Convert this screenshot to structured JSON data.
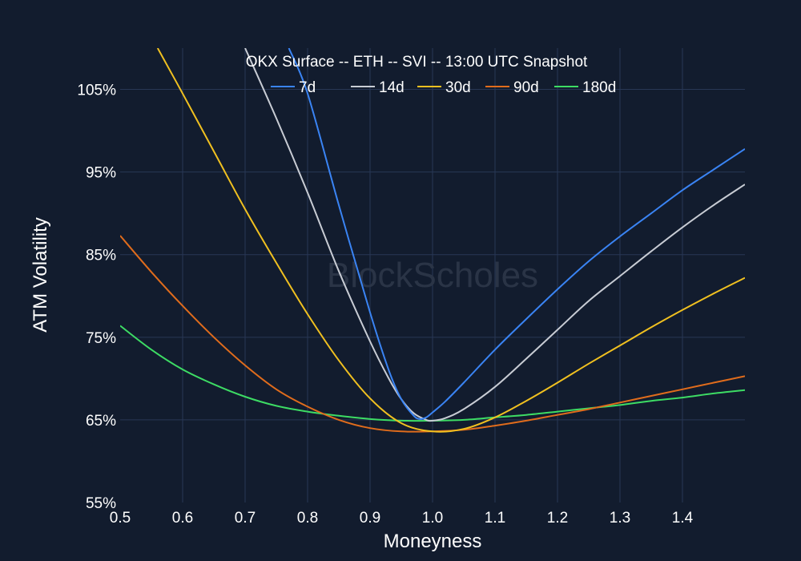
{
  "chart_data": {
    "type": "line",
    "title": "OKX Surface -- ETH -- SVI -- 13:00 UTC Snapshot",
    "xlabel": "Moneyness",
    "ylabel": "ATM Volatility",
    "watermark": "BlockScholes",
    "xlim": [
      0.5,
      1.5
    ],
    "ylim": [
      55,
      110
    ],
    "x_ticks": [
      0.5,
      0.6,
      0.7,
      0.8,
      0.9,
      1.0,
      1.1,
      1.2,
      1.3,
      1.4
    ],
    "x_tick_labels": [
      "0.5",
      "0.6",
      "0.7",
      "0.8",
      "0.9",
      "1.0",
      "1.1",
      "1.2",
      "1.3",
      "1.4"
    ],
    "y_ticks": [
      55,
      65,
      75,
      85,
      95,
      105
    ],
    "y_tick_labels": [
      "55%",
      "65%",
      "75%",
      "85%",
      "95%",
      "105%"
    ],
    "grid": true,
    "legend_position": "top-center",
    "colors": {
      "background": "#121c2e",
      "grid": "#283755"
    },
    "series": [
      {
        "name": "7d",
        "color": "#3a84f4",
        "x": [
          0.77,
          0.8,
          0.85,
          0.9,
          0.93,
          0.95,
          0.97,
          0.98,
          0.99,
          1.0,
          1.02,
          1.05,
          1.1,
          1.15,
          1.2,
          1.25,
          1.3,
          1.35,
          1.4,
          1.45,
          1.5
        ],
        "y": [
          110,
          104.5,
          91,
          78,
          71,
          67.5,
          65.5,
          65.1,
          65.3,
          65.9,
          67.2,
          69.5,
          73.5,
          77.2,
          80.8,
          84.2,
          87.2,
          90.0,
          92.8,
          95.3,
          97.8
        ]
      },
      {
        "name": "14d",
        "color": "#c8ccd4",
        "x": [
          0.7,
          0.75,
          0.8,
          0.85,
          0.9,
          0.93,
          0.95,
          0.97,
          0.99,
          1.0,
          1.02,
          1.05,
          1.1,
          1.15,
          1.2,
          1.25,
          1.3,
          1.35,
          1.4,
          1.45,
          1.5
        ],
        "y": [
          110,
          101.5,
          92.5,
          83,
          74.5,
          70,
          67.5,
          65.8,
          65.0,
          64.9,
          65.2,
          66.3,
          69.0,
          72.4,
          75.9,
          79.4,
          82.4,
          85.4,
          88.3,
          91.0,
          93.5
        ]
      },
      {
        "name": "30d",
        "color": "#f0c020",
        "x": [
          0.56,
          0.6,
          0.65,
          0.7,
          0.75,
          0.8,
          0.85,
          0.9,
          0.95,
          1.0,
          1.05,
          1.1,
          1.15,
          1.2,
          1.25,
          1.3,
          1.35,
          1.4,
          1.45,
          1.5
        ],
        "y": [
          110,
          104.5,
          97.5,
          90.5,
          84.0,
          77.8,
          72.2,
          67.6,
          64.6,
          63.6,
          63.9,
          65.3,
          67.3,
          69.5,
          71.8,
          74.0,
          76.2,
          78.3,
          80.3,
          82.2
        ]
      },
      {
        "name": "90d",
        "color": "#e06c1c",
        "x": [
          0.5,
          0.55,
          0.6,
          0.65,
          0.7,
          0.75,
          0.8,
          0.85,
          0.9,
          0.95,
          1.0,
          1.05,
          1.1,
          1.15,
          1.2,
          1.25,
          1.3,
          1.35,
          1.4,
          1.45,
          1.5
        ],
        "y": [
          87.3,
          82.9,
          78.8,
          75.0,
          71.6,
          68.7,
          66.6,
          65.0,
          64.0,
          63.6,
          63.6,
          63.8,
          64.3,
          64.9,
          65.6,
          66.3,
          67.1,
          67.9,
          68.7,
          69.5,
          70.3
        ]
      },
      {
        "name": "180d",
        "color": "#3ddc64",
        "x": [
          0.5,
          0.55,
          0.6,
          0.65,
          0.7,
          0.75,
          0.8,
          0.85,
          0.9,
          0.95,
          1.0,
          1.05,
          1.1,
          1.15,
          1.2,
          1.25,
          1.3,
          1.35,
          1.4,
          1.45,
          1.5
        ],
        "y": [
          76.4,
          73.5,
          71.1,
          69.3,
          67.8,
          66.7,
          66.0,
          65.5,
          65.1,
          64.9,
          64.9,
          65.0,
          65.3,
          65.6,
          66.0,
          66.4,
          66.8,
          67.3,
          67.7,
          68.2,
          68.6
        ]
      }
    ]
  }
}
